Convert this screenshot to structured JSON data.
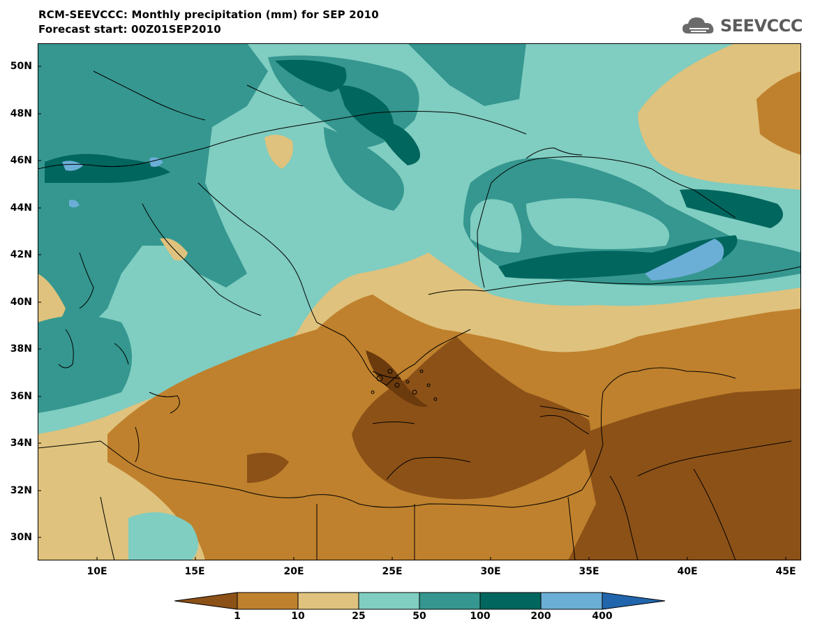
{
  "title_line1": "RCM-SEEVCCC: Monthly precipitation (mm) for SEP 2010",
  "title_line2": "Forecast start: 00Z01SEP2010",
  "logo_text": "SEEVCCC",
  "y_ticks": [
    "50N",
    "48N",
    "46N",
    "44N",
    "42N",
    "40N",
    "38N",
    "36N",
    "34N",
    "32N",
    "30N"
  ],
  "x_ticks": [
    "10E",
    "15E",
    "20E",
    "25E",
    "30E",
    "35E",
    "40E",
    "45E"
  ],
  "colorbar": {
    "levels": [
      "1",
      "10",
      "25",
      "50",
      "100",
      "200",
      "400"
    ],
    "colors": [
      "#8c5117",
      "#bf812d",
      "#dfc27d",
      "#80cdc1",
      "#35978f",
      "#01665e",
      "#6baed6",
      "#2166ac"
    ]
  }
}
